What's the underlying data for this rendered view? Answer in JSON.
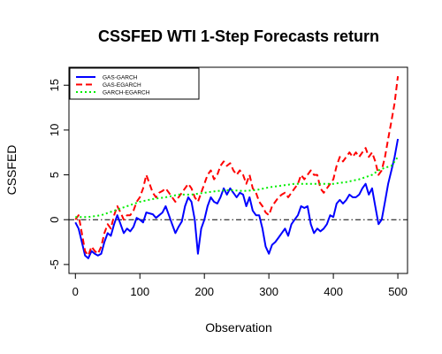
{
  "chart_data": {
    "type": "line",
    "title": "CSSFED WTI 1-Step Forecasts return",
    "xlabel": "Observation",
    "ylabel": "CSSFED",
    "xlim": [
      -10,
      515
    ],
    "ylim": [
      -6,
      17
    ],
    "x_ticks": [
      "0",
      "100",
      "200",
      "300",
      "400",
      "500"
    ],
    "x_tick_values": [
      0,
      100,
      200,
      300,
      400,
      500
    ],
    "y_ticks": [
      "-5",
      "0",
      "5",
      "10",
      "15"
    ],
    "y_tick_values": [
      -5,
      0,
      5,
      10,
      15
    ],
    "reference_line": {
      "y": 0,
      "style": "dash-dot",
      "color": "#000000"
    },
    "legend_position": "top-left",
    "series": [
      {
        "name": "GAS-GARCH",
        "color": "#0000ff",
        "dash": "solid",
        "x": [
          0,
          5,
          10,
          15,
          20,
          25,
          30,
          35,
          40,
          45,
          50,
          55,
          60,
          65,
          70,
          75,
          80,
          85,
          90,
          95,
          100,
          105,
          110,
          115,
          120,
          125,
          130,
          135,
          140,
          145,
          150,
          155,
          160,
          165,
          170,
          175,
          180,
          185,
          190,
          195,
          200,
          205,
          210,
          215,
          220,
          225,
          230,
          235,
          240,
          245,
          250,
          255,
          260,
          265,
          270,
          275,
          280,
          285,
          290,
          295,
          300,
          305,
          310,
          315,
          320,
          325,
          330,
          335,
          340,
          345,
          350,
          355,
          360,
          365,
          370,
          375,
          380,
          385,
          390,
          395,
          400,
          405,
          410,
          415,
          420,
          425,
          430,
          435,
          440,
          445,
          450,
          455,
          460,
          465,
          470,
          475,
          480,
          485,
          490,
          495,
          500
        ],
        "values": [
          -0.3,
          -1.0,
          -2.5,
          -4.0,
          -4.3,
          -3.5,
          -3.8,
          -4.0,
          -3.8,
          -2.5,
          -1.5,
          -1.8,
          -0.5,
          0.5,
          -0.5,
          -1.5,
          -1.0,
          -1.3,
          -0.8,
          0.2,
          0.0,
          -0.3,
          0.8,
          0.7,
          0.6,
          0.2,
          0.5,
          0.8,
          1.5,
          0.5,
          -0.5,
          -1.5,
          -0.8,
          -0.2,
          1.5,
          2.5,
          2.0,
          0.0,
          -3.8,
          -1.0,
          0.0,
          1.5,
          2.5,
          2.0,
          1.8,
          2.5,
          3.5,
          2.8,
          3.5,
          3.0,
          2.5,
          3.0,
          2.8,
          1.5,
          2.5,
          1.0,
          0.5,
          0.5,
          -1.0,
          -3.0,
          -3.8,
          -2.8,
          -2.5,
          -2.0,
          -1.5,
          -1.0,
          -1.8,
          -0.5,
          0.0,
          0.5,
          1.5,
          1.3,
          1.5,
          -0.5,
          -1.5,
          -1.0,
          -1.3,
          -1.0,
          -0.5,
          0.5,
          0.3,
          1.8,
          2.2,
          1.8,
          2.2,
          2.8,
          2.5,
          2.5,
          2.8,
          3.5,
          4.0,
          2.8,
          3.5,
          1.5,
          -0.5,
          0.0,
          2.0,
          4.0,
          5.5,
          7.0,
          9.0
        ]
      },
      {
        "name": "GAS-EGARCH",
        "color": "#ff0000",
        "dash": "dashed",
        "x": [
          0,
          5,
          10,
          15,
          20,
          25,
          30,
          35,
          40,
          45,
          50,
          55,
          60,
          65,
          70,
          75,
          80,
          85,
          90,
          95,
          100,
          105,
          110,
          115,
          120,
          125,
          130,
          135,
          140,
          145,
          150,
          155,
          160,
          165,
          170,
          175,
          180,
          185,
          190,
          195,
          200,
          205,
          210,
          215,
          220,
          225,
          230,
          235,
          240,
          245,
          250,
          255,
          260,
          265,
          270,
          275,
          280,
          285,
          290,
          295,
          300,
          305,
          310,
          315,
          320,
          325,
          330,
          335,
          340,
          345,
          350,
          355,
          360,
          365,
          370,
          375,
          380,
          385,
          390,
          395,
          400,
          405,
          410,
          415,
          420,
          425,
          430,
          435,
          440,
          445,
          450,
          455,
          460,
          465,
          470,
          475,
          480,
          485,
          490,
          495,
          500
        ],
        "values": [
          0.0,
          0.5,
          -1.5,
          -3.5,
          -4.0,
          -3.0,
          -3.5,
          -3.8,
          -3.0,
          -1.5,
          -0.5,
          -1.0,
          0.5,
          1.5,
          0.8,
          0.0,
          0.5,
          0.5,
          1.0,
          2.0,
          2.5,
          3.5,
          5.0,
          4.0,
          3.0,
          2.5,
          3.0,
          3.2,
          3.5,
          3.0,
          2.5,
          2.0,
          2.5,
          3.0,
          3.5,
          4.0,
          3.5,
          2.5,
          2.0,
          3.0,
          4.0,
          5.0,
          5.5,
          4.5,
          5.0,
          6.0,
          6.5,
          6.0,
          6.3,
          5.5,
          5.0,
          5.5,
          5.0,
          4.0,
          5.0,
          3.5,
          3.0,
          2.0,
          1.5,
          0.8,
          0.5,
          1.5,
          2.0,
          2.5,
          2.8,
          3.0,
          2.5,
          3.0,
          3.5,
          4.0,
          5.0,
          4.5,
          5.0,
          5.5,
          5.0,
          5.0,
          3.5,
          3.0,
          3.5,
          4.0,
          4.5,
          6.0,
          7.0,
          6.5,
          7.0,
          7.5,
          7.0,
          7.5,
          7.0,
          7.5,
          8.0,
          7.0,
          7.5,
          6.5,
          5.0,
          5.5,
          7.0,
          9.0,
          11.0,
          13.0,
          16.0
        ]
      },
      {
        "name": "GARCH-EGARCH",
        "color": "#00ee00",
        "dash": "dotted",
        "x": [
          0,
          20,
          40,
          60,
          80,
          100,
          120,
          140,
          160,
          180,
          200,
          220,
          240,
          260,
          280,
          300,
          320,
          340,
          360,
          380,
          400,
          420,
          440,
          460,
          470,
          480,
          490,
          500
        ],
        "values": [
          0.3,
          0.3,
          0.5,
          1.0,
          1.5,
          2.0,
          2.3,
          2.5,
          2.8,
          2.8,
          3.0,
          3.2,
          3.3,
          3.2,
          3.3,
          3.6,
          3.8,
          4.0,
          4.0,
          4.0,
          4.0,
          4.2,
          4.5,
          5.0,
          5.5,
          5.8,
          6.0,
          7.0
        ]
      }
    ]
  }
}
